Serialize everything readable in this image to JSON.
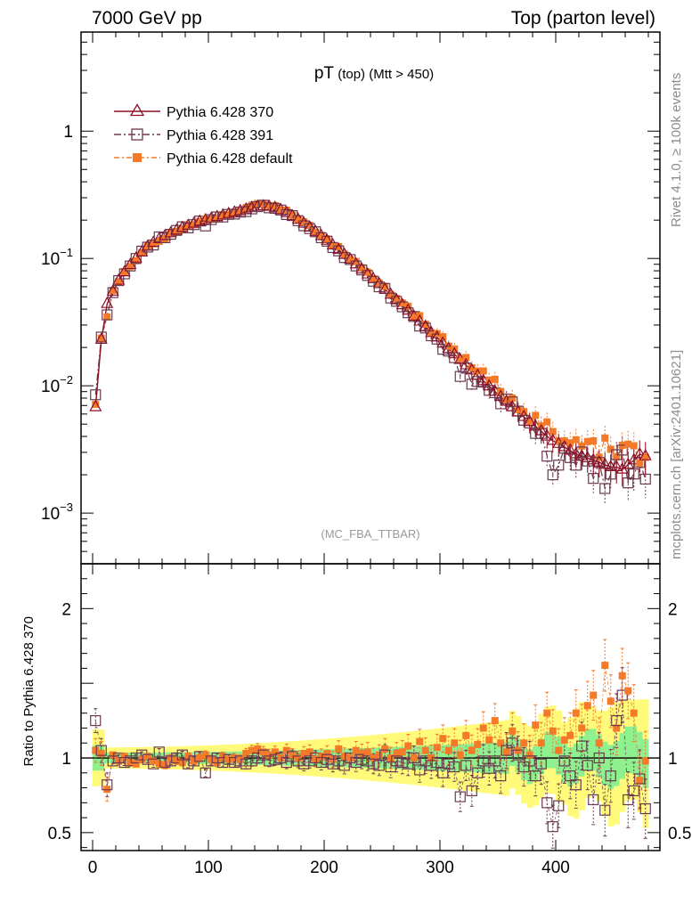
{
  "header": {
    "left": "7000 GeV pp",
    "right": "Top (parton level)"
  },
  "plot_title": {
    "main": "pT",
    "sub1": " (top)",
    "sub2": " (Mtt > 450)"
  },
  "watermark": "(MC_FBA_TTBAR)",
  "side_labels": {
    "rivet": "Rivet 4.1.0, ≥ 100k events",
    "mcplots": "mcplots.cern.ch [arXiv:2401.10621]"
  },
  "ratio_ylabel": "Ratio to Pythia 6.428 370",
  "colors": {
    "s370": "#8b0f24",
    "s391": "#6b3a50",
    "sdef": "#f47a2a",
    "band_yellow": "#fffa7a",
    "band_green": "#8ef08e"
  },
  "chart_data": {
    "type": "line",
    "x": [
      2.5,
      7.5,
      12.5,
      17.5,
      22.5,
      27.5,
      32.5,
      37.5,
      42.5,
      47.5,
      52.5,
      57.5,
      62.5,
      67.5,
      72.5,
      77.5,
      82.5,
      87.5,
      92.5,
      97.5,
      102.5,
      107.5,
      112.5,
      117.5,
      122.5,
      127.5,
      132.5,
      137.5,
      142.5,
      147.5,
      152.5,
      157.5,
      162.5,
      167.5,
      172.5,
      177.5,
      182.5,
      187.5,
      192.5,
      197.5,
      202.5,
      207.5,
      212.5,
      217.5,
      222.5,
      227.5,
      232.5,
      237.5,
      242.5,
      247.5,
      252.5,
      257.5,
      262.5,
      267.5,
      272.5,
      277.5,
      282.5,
      287.5,
      292.5,
      297.5,
      302.5,
      307.5,
      312.5,
      317.5,
      322.5,
      327.5,
      332.5,
      337.5,
      342.5,
      347.5,
      352.5,
      357.5,
      362.5,
      367.5,
      372.5,
      377.5,
      382.5,
      387.5,
      392.5,
      397.5,
      402.5,
      407.5,
      412.5,
      417.5,
      422.5,
      427.5,
      432.5,
      437.5,
      442.5,
      447.5,
      452.5,
      457.5,
      462.5,
      467.5,
      472.5,
      477.5
    ],
    "xlim": [
      -10,
      490
    ],
    "xticks": [
      0,
      100,
      200,
      300,
      400
    ],
    "legend": [
      "Pythia 6.428 370",
      "Pythia 6.428 391",
      "Pythia 6.428 default"
    ],
    "main_ylim": [
      0.0004,
      6
    ],
    "main_yticks": [
      "1",
      "10^-1",
      "10^-2",
      "10^-3"
    ],
    "series": [
      {
        "name": "Pythia 6.428 370",
        "values": [
          0.0068,
          0.023,
          0.044,
          0.055,
          0.067,
          0.078,
          0.089,
          0.1,
          0.112,
          0.124,
          0.133,
          0.142,
          0.15,
          0.158,
          0.166,
          0.174,
          0.181,
          0.188,
          0.195,
          0.2,
          0.206,
          0.212,
          0.218,
          0.224,
          0.23,
          0.236,
          0.243,
          0.25,
          0.255,
          0.257,
          0.255,
          0.25,
          0.24,
          0.228,
          0.215,
          0.202,
          0.188,
          0.175,
          0.162,
          0.15,
          0.138,
          0.127,
          0.117,
          0.107,
          0.098,
          0.09,
          0.082,
          0.075,
          0.069,
          0.063,
          0.057,
          0.052,
          0.047,
          0.043,
          0.039,
          0.035,
          0.032,
          0.029,
          0.026,
          0.024,
          0.0215,
          0.0195,
          0.0177,
          0.016,
          0.0145,
          0.0132,
          0.012,
          0.0109,
          0.0099,
          0.009,
          0.0082,
          0.0075,
          0.0068,
          0.0062,
          0.0057,
          0.0052,
          0.0048,
          0.0044,
          0.004,
          0.0037,
          0.0035,
          0.0033,
          0.0031,
          0.0029,
          0.0028,
          0.0027,
          0.0026,
          0.0025,
          0.0024,
          0.0023,
          0.0023,
          0.0022,
          0.0024,
          0.0026,
          0.0029,
          0.0028
        ]
      },
      {
        "name": "Pythia 6.428 391",
        "ratio": [
          1.25,
          1.05,
          0.82,
          0.98,
          1.0,
          0.97,
          0.98,
          1.0,
          1.02,
          0.99,
          0.96,
          1.04,
          0.97,
          0.98,
          1.0,
          1.02,
          0.96,
          0.98,
          1.01,
          0.9,
          0.98,
          1.0,
          0.97,
          0.99,
          0.97,
          0.98,
          0.96,
          0.98,
          1.0,
          1.02,
          0.98,
          0.99,
          1.0,
          0.97,
          1.01,
          0.98,
          0.96,
          0.98,
          1.0,
          0.97,
          0.99,
          0.96,
          0.98,
          0.95,
          1.0,
          0.97,
          0.99,
          0.98,
          0.96,
          0.95,
          1.02,
          0.94,
          0.98,
          0.97,
          0.96,
          1.0,
          0.92,
          0.98,
          0.95,
          0.97,
          0.9,
          0.96,
          0.94,
          0.74,
          0.95,
          0.78,
          0.9,
          0.98,
          0.93,
          0.98,
          0.88,
          1.05,
          1.1,
          1.02,
          0.94,
          0.98,
          0.88,
          0.96,
          0.7,
          0.54,
          0.68,
          0.98,
          0.88,
          0.82,
          1.08,
          0.95,
          0.72,
          1.0,
          0.65,
          0.88,
          1.25,
          1.42,
          0.72,
          0.78,
          0.86,
          0.66
        ]
      },
      {
        "name": "Pythia 6.428 default",
        "ratio": [
          1.05,
          1.03,
          0.79,
          1.02,
          0.98,
          1.01,
          0.97,
          0.96,
          0.99,
          1.01,
          0.98,
          0.96,
          0.95,
          1.0,
          0.98,
          0.97,
          1.01,
          0.98,
          1.0,
          1.02,
          0.99,
          0.97,
          1.01,
          0.99,
          1.0,
          0.99,
          1.03,
          1.05,
          1.06,
          1.04,
          1.02,
          1.04,
          1.0,
          1.05,
          1.02,
          1.0,
          1.03,
          1.04,
          0.99,
          1.01,
          1.03,
          0.99,
          1.06,
          1.01,
          1.0,
          1.05,
          1.03,
          1.04,
          1.0,
          1.02,
          1.06,
          1.0,
          1.03,
          1.04,
          1.08,
          1.0,
          1.11,
          1.05,
          1.0,
          1.07,
          1.13,
          1.05,
          1.1,
          1.02,
          1.15,
          1.05,
          1.09,
          1.2,
          1.12,
          1.25,
          1.1,
          1.04,
          1.18,
          1.05,
          1.1,
          1.02,
          1.22,
          1.1,
          1.3,
          1.18,
          1.05,
          1.12,
          1.15,
          1.3,
          1.2,
          1.35,
          1.42,
          1.1,
          1.62,
          1.38,
          1.2,
          1.55,
          1.45,
          1.3,
          0.85,
          0.98
        ]
      }
    ],
    "ratio_ylim": [
      0.38,
      2.3
    ],
    "ratio_yticks": [
      0.5,
      1,
      2
    ],
    "ratio_ylabel": "Ratio to Pythia 6.428 370"
  }
}
